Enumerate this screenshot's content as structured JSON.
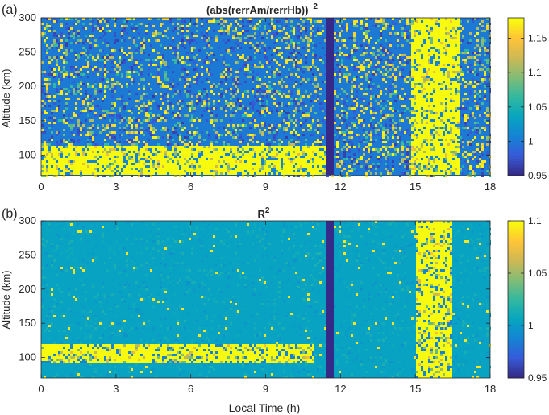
{
  "chart_data": [
    {
      "type": "heatmap",
      "panel_label": "(a)",
      "title": "(abs(rerrAm/rerrHb))",
      "title_superscript": "2",
      "xlabel": "",
      "ylabel": "Altitude (km)",
      "xlim": [
        0,
        18
      ],
      "ylim": [
        70,
        300
      ],
      "xticks": [
        0,
        3,
        6,
        9,
        12,
        15,
        18
      ],
      "yticks": [
        100,
        150,
        200,
        250,
        300
      ],
      "colorbar": {
        "ticks": [
          "0.95",
          "1",
          "1.05",
          "1.1",
          "1.15"
        ],
        "clim": [
          0.95,
          1.18
        ]
      },
      "features": [
        {
          "description": "strong enhancement band",
          "x_range": [
            0,
            11.5
          ],
          "y_range": [
            70,
            115
          ]
        },
        {
          "description": "strong enhancement column",
          "x_range": [
            14.8,
            16.8
          ],
          "y_range": [
            70,
            300
          ]
        },
        {
          "description": "data gap",
          "x_range": [
            11.4,
            11.7
          ],
          "y_range": [
            70,
            300
          ]
        }
      ]
    },
    {
      "type": "heatmap",
      "panel_label": "(b)",
      "title": "R",
      "title_superscript": "2",
      "xlabel": "Local Time (h)",
      "ylabel": "Altitude (km)",
      "xlim": [
        0,
        18
      ],
      "ylim": [
        70,
        300
      ],
      "xticks": [
        0,
        3,
        6,
        9,
        12,
        15,
        18
      ],
      "yticks": [
        100,
        150,
        200,
        250,
        300
      ],
      "colorbar": {
        "ticks": [
          "0.95",
          "1",
          "1.05",
          "1.1"
        ],
        "clim": [
          0.95,
          1.1
        ]
      },
      "features": [
        {
          "description": "strong enhancement band",
          "x_range": [
            0,
            11
          ],
          "y_range": [
            90,
            118
          ]
        },
        {
          "description": "strong enhancement column",
          "x_range": [
            15,
            16.5
          ],
          "y_range": [
            70,
            300
          ]
        },
        {
          "description": "data gap",
          "x_range": [
            11.4,
            11.7
          ],
          "y_range": [
            70,
            300
          ]
        }
      ]
    }
  ]
}
